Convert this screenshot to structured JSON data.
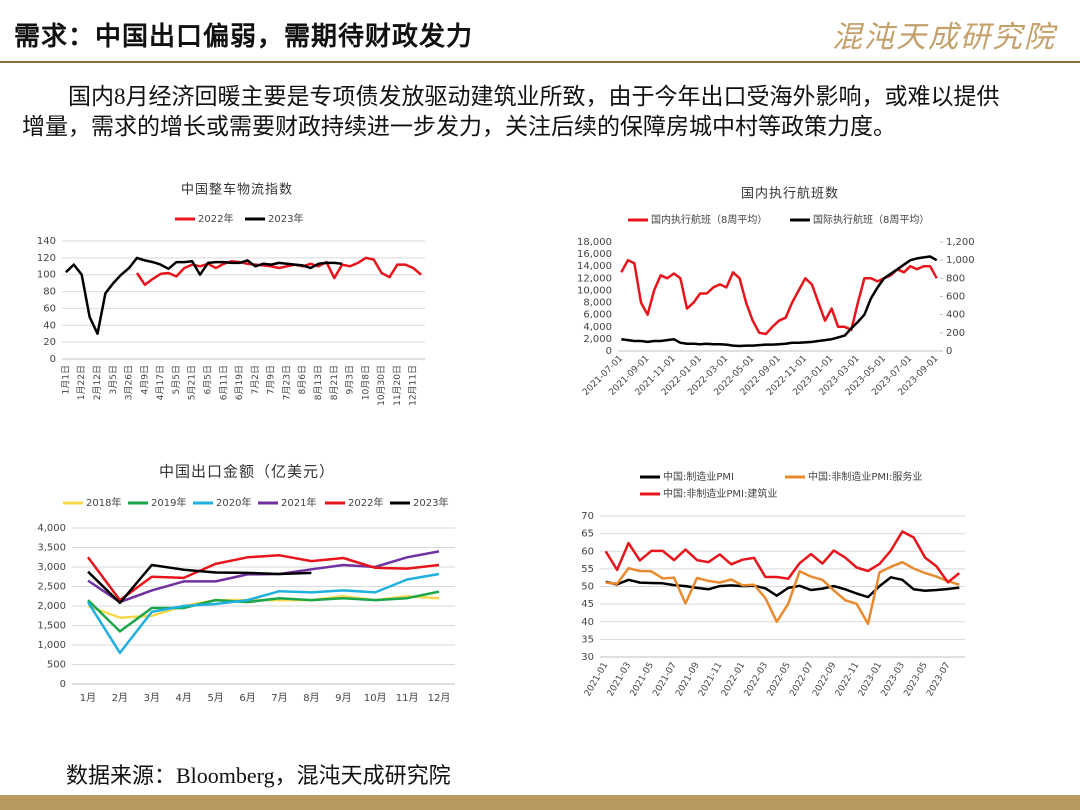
{
  "header": {
    "title": "需求：中国出口偏弱，需期待财政发力",
    "logo": "混沌天成研究院"
  },
  "body": {
    "text": "国内8月经济回暖主要是专项债发放驱动建筑业所致，由于今年出口受海外影响，或难以提供增量，需求的增长或需要财政持续进一步发力，关注后续的保障房城中村等政策力度。"
  },
  "source": "数据来源：Bloomberg，混沌天成研究院",
  "chart_data": [
    {
      "type": "line",
      "title": "中国整车物流指数",
      "legend": "top",
      "grid": true,
      "categories": [
        "1月1日",
        null,
        "1月22日",
        null,
        "2月12日",
        null,
        "3月5日",
        null,
        "3月26日",
        null,
        "4月9日",
        null,
        "4月17日",
        null,
        "5月5日",
        null,
        "5月21日",
        null,
        "6月5日",
        null,
        "6月11日",
        null,
        "6月19日",
        null,
        "7月2日",
        null,
        "7月9日",
        null,
        "7月23日",
        null,
        "8月6日",
        null,
        "8月13日",
        null,
        "8月21日",
        null,
        "9月3日",
        null,
        "10月8日",
        null,
        "10月30日",
        null,
        "11月20日",
        null,
        "12月11日",
        null
      ],
      "series": [
        {
          "name": "2022年",
          "color": "#e8141c",
          "values": [
            null,
            null,
            null,
            null,
            null,
            null,
            null,
            null,
            null,
            102,
            88,
            95,
            101,
            102,
            98,
            108,
            112,
            110,
            113,
            108,
            113,
            116,
            115,
            113,
            112,
            111,
            110,
            108,
            110,
            112,
            110,
            113,
            110,
            115,
            96,
            112,
            110,
            114,
            120,
            118,
            102,
            97,
            112,
            112,
            108,
            100
          ]
        },
        {
          "name": "2023年",
          "color": "#000000",
          "values": [
            103,
            112,
            100,
            50,
            30,
            78,
            90,
            100,
            108,
            120,
            117,
            115,
            112,
            107,
            115,
            115,
            116,
            100,
            114,
            115,
            115,
            114,
            114,
            117,
            110,
            113,
            112,
            114,
            113,
            112,
            111,
            108,
            113,
            114,
            114,
            113,
            null,
            null,
            null,
            null,
            null,
            null,
            null,
            null,
            null,
            null
          ]
        }
      ],
      "ylim": [
        0,
        140
      ],
      "yticks": [
        0,
        20,
        40,
        60,
        80,
        100,
        120,
        140
      ]
    },
    {
      "type": "line",
      "title": "国内执行航班数",
      "legend": "top",
      "grid": false,
      "categories": [
        "2021-07-01",
        null,
        null,
        null,
        "2021-09-01",
        null,
        null,
        null,
        "2021-11-01",
        null,
        null,
        null,
        "2022-01-01",
        null,
        null,
        null,
        "2022-03-01",
        null,
        null,
        null,
        "2022-05-01",
        null,
        null,
        null,
        "2022-09-01",
        null,
        null,
        null,
        "2022-11-01",
        null,
        null,
        null,
        "2023-01-01",
        null,
        null,
        null,
        "2023-03-01",
        null,
        null,
        null,
        "2023-05-01",
        null,
        null,
        null,
        "2023-07-01",
        null,
        null,
        null,
        "2023-09-01"
      ],
      "series": [
        {
          "name": "国内执行航班（8周平均）",
          "color": "#e8141c",
          "values": [
            13000,
            15000,
            14500,
            8000,
            6000,
            10000,
            12500,
            12000,
            12800,
            12000,
            7000,
            8000,
            9500,
            9500,
            10500,
            11000,
            10500,
            13000,
            12000,
            8000,
            5000,
            3000,
            2800,
            4000,
            5000,
            5500,
            8000,
            10000,
            12000,
            11000,
            8000,
            5000,
            7000,
            4000,
            4000,
            3500,
            8000,
            12000,
            12000,
            11500,
            12000,
            12500,
            13500,
            13000,
            14000,
            13500,
            14000,
            14000,
            12000
          ]
        },
        {
          "name": "国际执行航班（8周平均）",
          "color": "#000000",
          "axis": "y2",
          "values": [
            130,
            120,
            110,
            110,
            100,
            110,
            110,
            120,
            130,
            90,
            80,
            80,
            75,
            80,
            75,
            75,
            70,
            60,
            55,
            60,
            60,
            65,
            70,
            70,
            75,
            80,
            90,
            90,
            95,
            100,
            110,
            120,
            130,
            150,
            170,
            250,
            320,
            400,
            580,
            700,
            800,
            850,
            900,
            950,
            1000,
            1020,
            1030,
            1040,
            1000
          ]
        }
      ],
      "ylim": [
        0,
        18000
      ],
      "yticks": [
        0,
        {
          "value": 2000,
          "label": "2,000"
        },
        {
          "value": 4000,
          "label": "4,000"
        },
        {
          "value": 6000,
          "label": "6,000"
        },
        {
          "value": 8000,
          "label": "8,000"
        },
        {
          "value": 10000,
          "label": "10,000"
        },
        {
          "value": 12000,
          "label": "12,000"
        },
        {
          "value": 14000,
          "label": "14,000"
        },
        {
          "value": 16000,
          "label": "16,000"
        },
        {
          "value": 18000,
          "label": "18,000"
        }
      ],
      "y2lim": [
        0,
        1200
      ],
      "y2ticks": [
        0,
        200,
        400,
        600,
        800,
        {
          "value": 1000,
          "label": "1,000"
        },
        {
          "value": 1200,
          "label": "1,200"
        }
      ]
    },
    {
      "type": "line",
      "title": "中国出口金额（亿美元）",
      "legend": "top",
      "grid": true,
      "categories": [
        "1月",
        "2月",
        "3月",
        "4月",
        "5月",
        "6月",
        "7月",
        "8月",
        "9月",
        "10月",
        "11月",
        "12月"
      ],
      "series": [
        {
          "name": "2018年",
          "color": "#f7d84a",
          "values": [
            2000,
            1700,
            1750,
            2000,
            2150,
            2150,
            2150,
            2150,
            2250,
            2150,
            2250,
            2200
          ]
        },
        {
          "name": "2019年",
          "color": "#1aa64a",
          "values": [
            2150,
            1350,
            1950,
            1950,
            2150,
            2100,
            2200,
            2150,
            2200,
            2150,
            2200,
            2370
          ]
        },
        {
          "name": "2020年",
          "color": "#1fb0e0",
          "values": [
            2100,
            800,
            1850,
            2000,
            2050,
            2150,
            2380,
            2350,
            2400,
            2350,
            2680,
            2820
          ]
        },
        {
          "name": "2021年",
          "color": "#7030a0",
          "values": [
            2650,
            2100,
            2400,
            2630,
            2630,
            2810,
            2820,
            2940,
            3050,
            3000,
            3250,
            3400
          ]
        },
        {
          "name": "2022年",
          "color": "#e8141c",
          "values": [
            3250,
            2150,
            2750,
            2720,
            3080,
            3250,
            3300,
            3150,
            3230,
            2980,
            2960,
            3050
          ]
        },
        {
          "name": "2023年",
          "color": "#000000",
          "values": [
            2880,
            2080,
            3050,
            2930,
            2860,
            2850,
            2820,
            2850,
            null,
            null,
            null,
            null
          ]
        }
      ],
      "ylim": [
        0,
        4000
      ],
      "yticks": [
        0,
        {
          "value": 500,
          "label": "500"
        },
        {
          "value": 1000,
          "label": "1,000"
        },
        {
          "value": 1500,
          "label": "1,500"
        },
        {
          "value": 2000,
          "label": "2,000"
        },
        {
          "value": 2500,
          "label": "2,500"
        },
        {
          "value": 3000,
          "label": "3,000"
        },
        {
          "value": 3500,
          "label": "3,500"
        },
        {
          "value": 4000,
          "label": "4,000"
        }
      ]
    },
    {
      "type": "line",
      "legend": "top",
      "grid": true,
      "categories": [
        "2021-01",
        null,
        "2021-03",
        null,
        "2021-05",
        null,
        "2021-07",
        null,
        "2021-09",
        null,
        "2021-11",
        null,
        "2022-01",
        null,
        "2022-03",
        null,
        "2022-05",
        null,
        "2022-07",
        null,
        "2022-09",
        null,
        "2022-11",
        null,
        "2023-01",
        null,
        "2023-03",
        null,
        "2023-05",
        null,
        "2023-07",
        null
      ],
      "series": [
        {
          "name": "中国:制造业PMI",
          "color": "#000000",
          "values": [
            51.3,
            50.6,
            51.9,
            51.1,
            51.0,
            50.9,
            50.4,
            50.1,
            49.6,
            49.2,
            50.1,
            50.3,
            50.1,
            50.2,
            49.5,
            47.4,
            49.6,
            50.2,
            49.0,
            49.4,
            50.1,
            49.2,
            48.0,
            47.0,
            50.1,
            52.6,
            51.9,
            49.2,
            48.8,
            49.0,
            49.3,
            49.7
          ]
        },
        {
          "name": "中国:非制造业PMI:服务业",
          "color": "#e88a2e",
          "values": [
            51.1,
            50.8,
            55.2,
            54.4,
            54.3,
            52.3,
            52.5,
            45.2,
            52.4,
            51.6,
            51.1,
            52.0,
            50.3,
            50.5,
            46.7,
            40.0,
            45.1,
            54.3,
            52.8,
            51.9,
            48.9,
            46.1,
            45.1,
            39.4,
            54.0,
            55.6,
            56.9,
            55.1,
            53.8,
            52.8,
            51.5,
            50.5
          ]
        },
        {
          "name": "中国:非制造业PMI:建筑业",
          "color": "#e8141c",
          "values": [
            60.0,
            54.7,
            62.3,
            57.4,
            60.1,
            60.1,
            57.5,
            60.5,
            57.5,
            56.9,
            59.1,
            56.3,
            57.6,
            58.1,
            52.7,
            52.7,
            52.2,
            56.6,
            59.2,
            56.5,
            60.2,
            58.2,
            55.4,
            54.4,
            56.4,
            60.2,
            65.6,
            63.9,
            58.2,
            55.7,
            51.2,
            53.8
          ]
        }
      ],
      "ylim": [
        30,
        70
      ],
      "yticks": [
        30,
        35,
        40,
        45,
        50,
        55,
        60,
        65,
        70
      ]
    }
  ]
}
